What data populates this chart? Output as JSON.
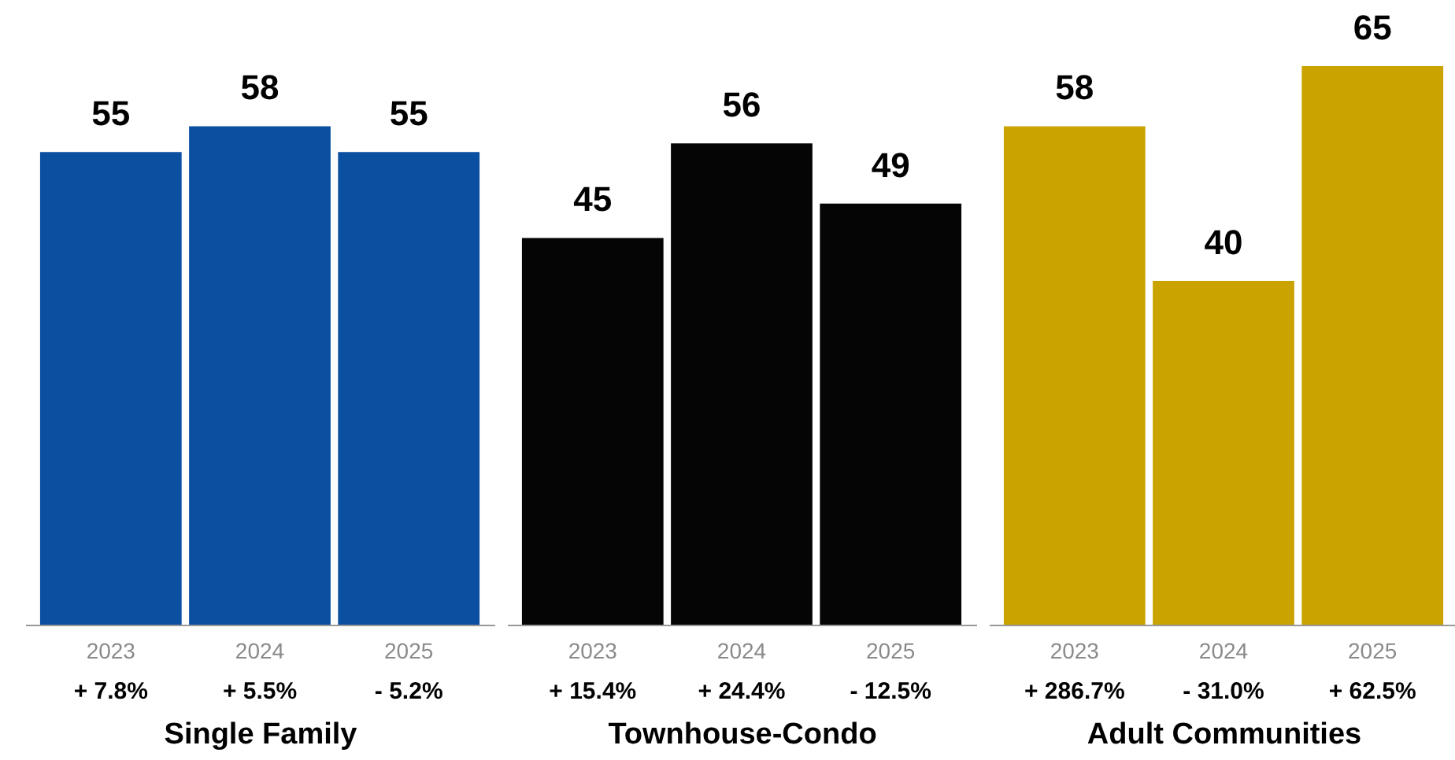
{
  "chart_data": [
    {
      "type": "bar",
      "xlabel": "Single Family",
      "categories": [
        "2023",
        "2024",
        "2025"
      ],
      "values": [
        55,
        58,
        55
      ],
      "color": "#0a4fa0",
      "data_labels": true,
      "annotations": [
        "+ 7.8%",
        "+ 5.5%",
        "- 5.2%"
      ]
    },
    {
      "type": "bar",
      "xlabel": "Townhouse-Condo",
      "categories": [
        "2023",
        "2024",
        "2025"
      ],
      "values": [
        45,
        56,
        49
      ],
      "color": "#050505",
      "data_labels": true,
      "annotations": [
        "+ 15.4%",
        "+ 24.4%",
        "- 12.5%"
      ]
    },
    {
      "type": "bar",
      "xlabel": "Adult Communities",
      "categories": [
        "2023",
        "2024",
        "2025"
      ],
      "values": [
        58,
        40,
        65
      ],
      "color": "#cba300",
      "data_labels": true,
      "annotations": [
        "+ 286.7%",
        "- 31.0%",
        "+ 62.5%"
      ]
    }
  ]
}
